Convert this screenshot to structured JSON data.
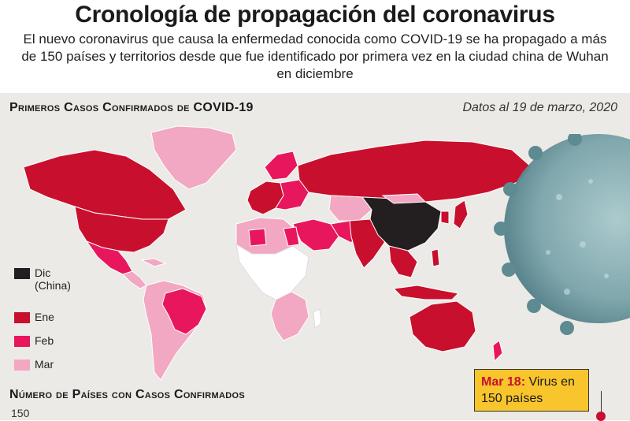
{
  "header": {
    "title": "Cronología de propagación del coronavirus",
    "subtitle": "El nuevo coronavirus que causa la enfermedad conocida como COVID-19 se ha propagado a más de 150 países y territorios desde que fue identificado por primera vez en la ciudad china de Wuhan en diciembre"
  },
  "map": {
    "heading": "Primeros Casos Confirmados de COVID-19",
    "date_note": "Datos al 19 de marzo, 2020",
    "legend": [
      {
        "label_line1": "Dic",
        "label_line2": "(China)",
        "color": "#231f20"
      },
      {
        "label_line1": "Ene",
        "label_line2": "",
        "color": "#c8102e"
      },
      {
        "label_line1": "Feb",
        "label_line2": "",
        "color": "#e8175d"
      },
      {
        "label_line1": "Mar",
        "label_line2": "",
        "color": "#f2a7c3"
      }
    ],
    "colors": {
      "no_cases": "#ffffff",
      "background": "#eceae6"
    }
  },
  "callout": {
    "date": "Mar 18:",
    "text": "Virus en 150 países"
  },
  "chart": {
    "heading": "Número de Países con Casos Confirmados",
    "y_tick_top": "150"
  }
}
